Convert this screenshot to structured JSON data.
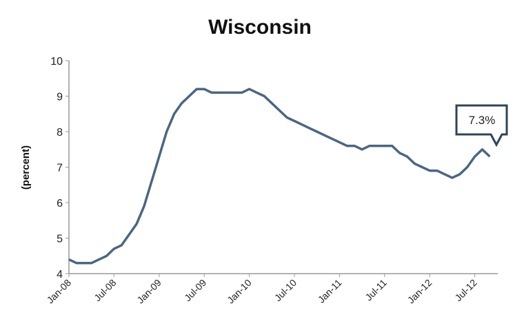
{
  "chart_data": {
    "type": "line",
    "title": "Wisconsin",
    "ylabel": "(percent)",
    "xlabel": "",
    "ylim": [
      4,
      10
    ],
    "yticks": [
      4,
      5,
      6,
      7,
      8,
      9,
      10
    ],
    "grid": false,
    "xtick_labels": [
      "Jan-08",
      "Jul-08",
      "Jan-09",
      "Jul-09",
      "Jan-10",
      "Jul-10",
      "Jan-11",
      "Jul-11",
      "Jan-12",
      "Jul-12"
    ],
    "x_start": "Jan-08",
    "x_end": "Sep-12",
    "line_color": "#4a6682",
    "values": [
      4.4,
      4.3,
      4.3,
      4.3,
      4.4,
      4.5,
      4.7,
      4.8,
      5.1,
      5.4,
      5.9,
      6.6,
      7.3,
      8.0,
      8.5,
      8.8,
      9.0,
      9.2,
      9.2,
      9.1,
      9.1,
      9.1,
      9.1,
      9.1,
      9.2,
      9.1,
      9.0,
      8.8,
      8.6,
      8.4,
      8.3,
      8.2,
      8.1,
      8.0,
      7.9,
      7.8,
      7.7,
      7.6,
      7.6,
      7.5,
      7.6,
      7.6,
      7.6,
      7.6,
      7.4,
      7.3,
      7.1,
      7.0,
      6.9,
      6.9,
      6.8,
      6.7,
      6.8,
      7.0,
      7.3,
      7.5,
      7.3
    ],
    "annotation": "7.3%"
  }
}
